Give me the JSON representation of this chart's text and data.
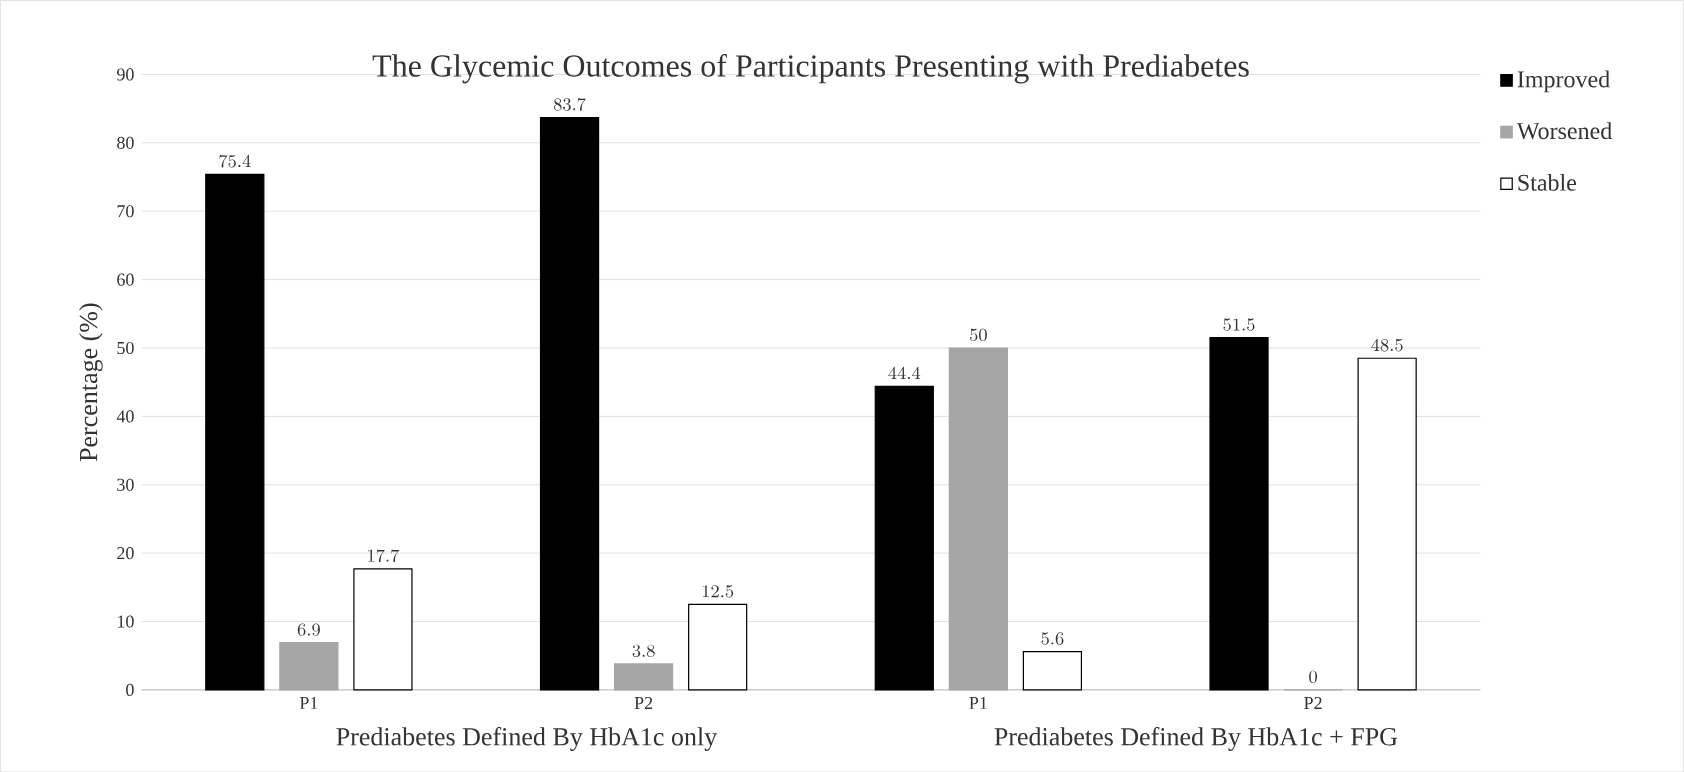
{
  "chart_data": {
    "type": "bar",
    "title": "The Glycemic Outcomes of Participants Presenting with Prediabetes",
    "ylabel": "Percentage (%)",
    "categories": [
      "P1",
      "P2",
      "P1",
      "P2"
    ],
    "series": [
      {
        "name": "Improved",
        "color": "#000000",
        "values": [
          75.4,
          83.7,
          44.4,
          51.5
        ]
      },
      {
        "name": "Worsened",
        "color": "#a5a5a5",
        "values": [
          6.9,
          3.8,
          50,
          0
        ]
      },
      {
        "name": "Stable",
        "color": "#ffffff",
        "values": [
          17.7,
          12.5,
          5.6,
          48.5
        ]
      }
    ],
    "annotations": [
      "Prediabetes Defined By HbA1c only",
      "Prediabetes Defined By HbA1c + FPG"
    ],
    "ylim": [
      0,
      90
    ],
    "yticks": [
      0,
      10,
      20,
      30,
      40,
      50,
      60,
      70,
      80,
      90
    ],
    "grid": "y",
    "legend": "top right",
    "data_labels": true
  }
}
